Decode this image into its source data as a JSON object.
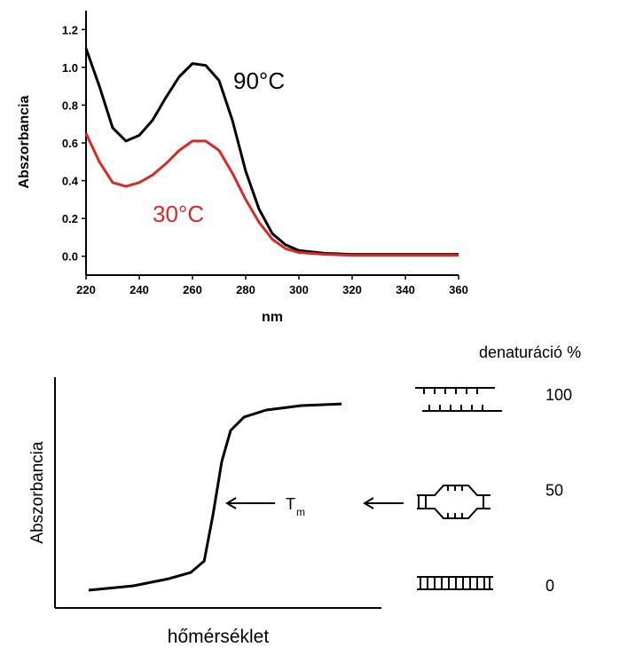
{
  "chart_data": [
    {
      "type": "line",
      "x_label": "nm",
      "y_label": "Abszorbancia",
      "x": [
        220,
        225,
        230,
        235,
        240,
        245,
        250,
        255,
        260,
        265,
        270,
        275,
        280,
        285,
        290,
        295,
        300,
        310,
        320,
        340,
        360
      ],
      "series": [
        {
          "name": "90°C",
          "color": "#000000",
          "values": [
            1.1,
            0.9,
            0.68,
            0.61,
            0.64,
            0.72,
            0.84,
            0.95,
            1.02,
            1.01,
            0.93,
            0.72,
            0.45,
            0.25,
            0.12,
            0.06,
            0.03,
            0.015,
            0.01,
            0.01,
            0.01
          ]
        },
        {
          "name": "30°C",
          "color": "#d62b2b",
          "values": [
            0.65,
            0.5,
            0.39,
            0.37,
            0.39,
            0.43,
            0.49,
            0.56,
            0.61,
            0.61,
            0.56,
            0.44,
            0.3,
            0.18,
            0.09,
            0.04,
            0.02,
            0.01,
            0.005,
            0.005,
            0.005
          ]
        }
      ],
      "xlim": [
        220,
        360
      ],
      "xticks": [
        220,
        240,
        260,
        280,
        300,
        320,
        340,
        360
      ],
      "ylim": [
        -0.1,
        1.3
      ],
      "yticks": [
        {
          "value": 0,
          "label": "0.0"
        },
        0.2,
        0.4,
        0.6,
        0.8,
        {
          "value": 1,
          "label": "1.0"
        },
        1.2
      ]
    },
    {
      "type": "line",
      "x_label": "hőmérséklet",
      "y_label": "Abszorbancia",
      "y2_title": "denaturáció %",
      "annotation": {
        "text": "T",
        "subscript": "m"
      },
      "x": [
        10.3,
        23.9,
        34.8,
        41.6,
        45.7,
        48.4,
        51.1,
        53.8,
        57.9,
        64.7,
        75.5,
        87.8
      ],
      "values": [
        -2.3,
        0,
        3.7,
        7,
        13,
        37.2,
        65.1,
        81.4,
        88.4,
        92.1,
        94.4,
        95.3
      ],
      "color": "#000000",
      "xlim": [
        0,
        100
      ],
      "ylim": [
        -11.6,
        109.3
      ],
      "yticks": [
        100,
        50,
        0
      ]
    }
  ]
}
